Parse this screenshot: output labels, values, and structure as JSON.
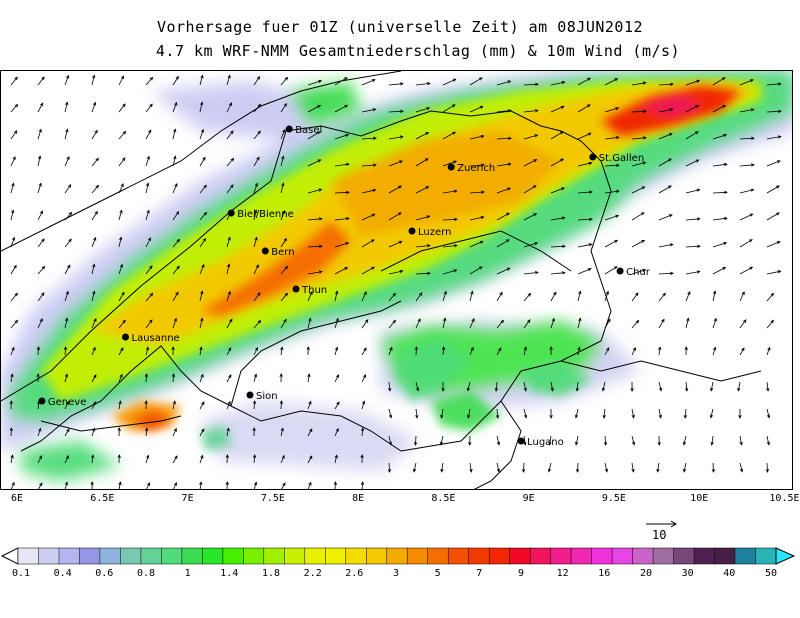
{
  "title_line1": "Vorhersage fuer 01Z (universelle Zeit) am 08JUN2012",
  "title_line2": "4.7 km WRF-NMM Gesamtniederschlag (mm) & 10m Wind (m/s)",
  "x_ticks": [
    "6E",
    "6.5E",
    "7E",
    "7.5E",
    "8E",
    "8.5E",
    "9E",
    "9.5E",
    "10E",
    "10.5E"
  ],
  "cities": [
    {
      "name": "Basel",
      "lon": 7.59,
      "lat": 47.56
    },
    {
      "name": "St.Gallen",
      "lon": 9.37,
      "lat": 47.42
    },
    {
      "name": "Zuerich",
      "lon": 8.54,
      "lat": 47.37
    },
    {
      "name": "Biel/Bienne",
      "lon": 7.25,
      "lat": 47.14
    },
    {
      "name": "Luzern",
      "lon": 8.31,
      "lat": 47.05
    },
    {
      "name": "Bern",
      "lon": 7.45,
      "lat": 46.95
    },
    {
      "name": "Chur",
      "lon": 9.53,
      "lat": 46.85
    },
    {
      "name": "Thun",
      "lon": 7.63,
      "lat": 46.76
    },
    {
      "name": "Lausanne",
      "lon": 6.63,
      "lat": 46.52
    },
    {
      "name": "Geneve",
      "lon": 6.14,
      "lat": 46.2
    },
    {
      "name": "Sion",
      "lon": 7.36,
      "lat": 46.23
    },
    {
      "name": "Lugano",
      "lon": 8.95,
      "lat": 46.0
    }
  ],
  "reference_vector": {
    "value": "10",
    "unit": "m/s"
  },
  "colorbar": {
    "colors": [
      "#e6e6f5",
      "#cdcdf0",
      "#b4b4f0",
      "#9696e6",
      "#8cb4dc",
      "#78c8b4",
      "#64d296",
      "#50dc78",
      "#3cdc50",
      "#28e628",
      "#46f000",
      "#78f000",
      "#a0f000",
      "#c8f000",
      "#e6f000",
      "#f0f000",
      "#f5dc00",
      "#f5c800",
      "#f5aa00",
      "#f58c00",
      "#f56e00",
      "#f55000",
      "#f03c00",
      "#f02800",
      "#f00a28",
      "#f0145a",
      "#f01e8c",
      "#f028b4",
      "#f032dc",
      "#e646e6",
      "#c864c8",
      "#a06ea0",
      "#784678",
      "#501e50",
      "#461e46",
      "#1e829e",
      "#28b4b4"
    ],
    "labels": [
      "0.1",
      "0.4",
      "0.6",
      "0.8",
      "1",
      "1.4",
      "1.8",
      "2.2",
      "2.6",
      "3",
      "5",
      "7",
      "9",
      "12",
      "16",
      "20",
      "30",
      "40",
      "50"
    ]
  }
}
